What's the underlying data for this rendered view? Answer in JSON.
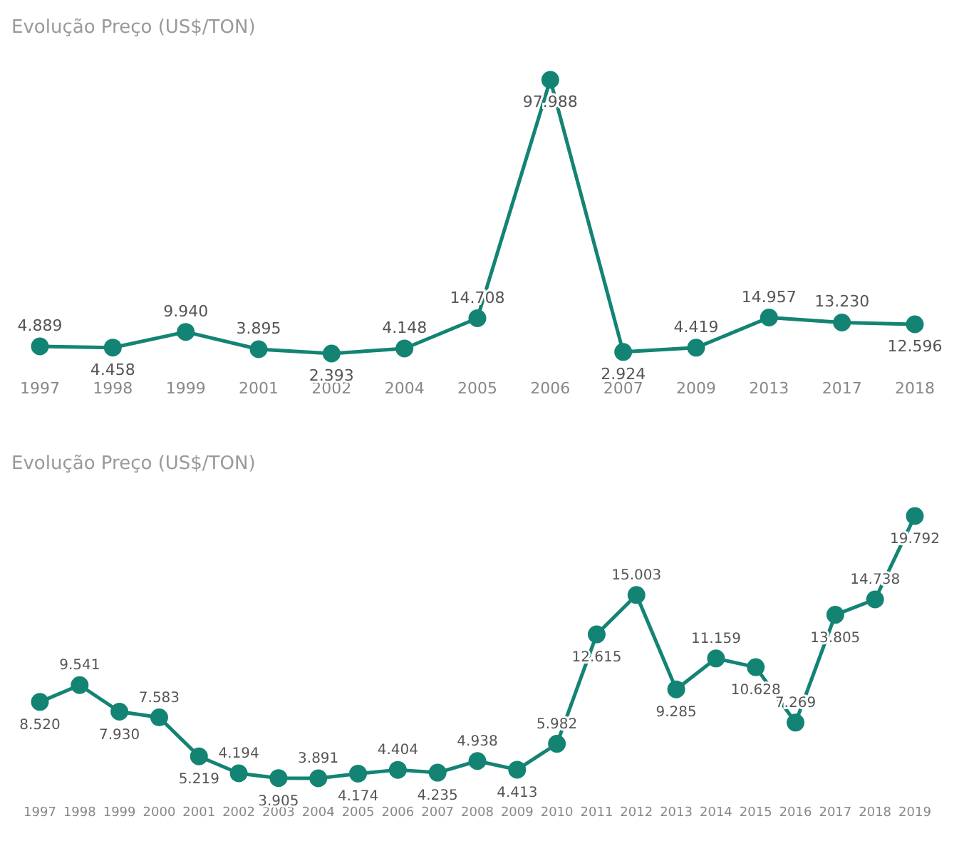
{
  "chart_data": [
    {
      "type": "line",
      "title": "Evolução Preço (US$/TON)",
      "categories": [
        "1997",
        "1998",
        "1999",
        "2001",
        "2002",
        "2004",
        "2005",
        "2006",
        "2007",
        "2009",
        "2013",
        "2017",
        "2018"
      ],
      "series": [
        {
          "color": "#138474",
          "values": [
            4889,
            4458,
            9940,
            3895,
            2393,
            4148,
            14708,
            97988,
            2924,
            4419,
            14957,
            13230,
            12596
          ],
          "value_labels": [
            "4.889",
            "4.458",
            "9.940",
            "3.895",
            "2.393",
            "4.148",
            "14.708",
            "97.988",
            "2.924",
            "4.419",
            "14.957",
            "13.230",
            "12.596"
          ]
        }
      ],
      "marker": "circle",
      "grid": false,
      "legend": false,
      "tick_labels": "x",
      "data_labels": true
    },
    {
      "type": "line",
      "title": "Evolução Preço (US$/TON)",
      "categories": [
        "1997",
        "1998",
        "1999",
        "2000",
        "2001",
        "2002",
        "2003",
        "2004",
        "2005",
        "2006",
        "2007",
        "2008",
        "2009",
        "2010",
        "2011",
        "2012",
        "2013",
        "2014",
        "2015",
        "2016",
        "2017",
        "2018",
        "2019"
      ],
      "series": [
        {
          "color": "#138474",
          "values": [
            8520,
            9541,
            7930,
            7583,
            5219,
            4194,
            3905,
            3891,
            4174,
            4404,
            4235,
            4938,
            4413,
            5982,
            12615,
            15003,
            9285,
            11159,
            10628,
            7269,
            13805,
            14738,
            19792
          ],
          "value_labels": [
            "8.520",
            "9.541",
            "7.930",
            "7.583",
            "5.219",
            "4.194",
            "3.905",
            "3.891",
            "4.174",
            "4.404",
            "4.235",
            "4.938",
            "4.413",
            "5.982",
            "12.615",
            "15.003",
            "9.285",
            "11.159",
            "10.628",
            "7.269",
            "13.805",
            "14.738",
            "19.792"
          ]
        }
      ],
      "marker": "circle",
      "grid": false,
      "legend": false,
      "tick_labels": "x",
      "data_labels": true
    }
  ]
}
